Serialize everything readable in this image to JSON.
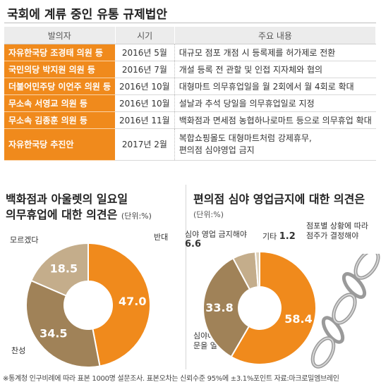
{
  "header": {
    "title": "국회에 계류 중인 유통 규제법안"
  },
  "table": {
    "columns": [
      "발의자",
      "시기",
      "주요 내용"
    ],
    "rows": [
      {
        "proposer": "자유한국당 조경태 의원 등",
        "date": "2016년 5월",
        "content": "대규모 점포 개점 시 등록제를 허가제로 전환"
      },
      {
        "proposer": "국민의당 박지원 의원 등",
        "date": "2016년 7월",
        "content": "개설 등록 전 관할 및 인접 지자체와 협의"
      },
      {
        "proposer": "더불어민주당 이언주 의원 등",
        "date": "2016년 10월",
        "content": "대형마트 의무휴업일을 월 2회에서 월 4회로 확대"
      },
      {
        "proposer": "무소속 서영교 의원 등",
        "date": "2016년 10월",
        "content": "설날과 추석 당일을 의무휴업일로 지정"
      },
      {
        "proposer": "무소속 김종훈 의원 등",
        "date": "2016년 11월",
        "content": "백화점과 면세점 농협하나로마트 등으로 의무휴업 확대"
      },
      {
        "proposer": "자유한국당 추진안",
        "date": "2017년 2월",
        "content": "복합쇼핑몰도 대형마트처럼 강제휴무,",
        "content2": "편의점 심야영업 금지"
      }
    ]
  },
  "left_chart": {
    "title_line1": "백화점과 아울렛의 일요일",
    "title_line2": "의무휴업에 대한 의견은",
    "unit": "(단위:%)",
    "labels": {
      "oppose": "반대",
      "support": "찬성",
      "unknown": "모르겠다"
    }
  },
  "right_chart": {
    "title": "편의점 심야 영업금지에 대한 의견은",
    "unit": "(단위:%)",
    "labels": {
      "ban": "심야 영업 금지해야",
      "ban_value": "6.6",
      "other": "기타",
      "other_value": "1.2",
      "depends_line1": "점포별 상황에 따라",
      "depends_line2": "점주가 결정해야",
      "open_line1": "심야에도",
      "open_line2": "문을 열어야"
    }
  },
  "chart_data": [
    {
      "type": "pie",
      "title": "백화점과 아울렛의 일요일 의무휴업에 대한 의견은",
      "unit": "%",
      "categories": [
        "반대",
        "찬성",
        "모르겠다"
      ],
      "values": [
        47.0,
        34.5,
        18.5
      ],
      "colors": [
        "#f08a1c",
        "#a08258",
        "#c4ad8b"
      ]
    },
    {
      "type": "pie",
      "title": "편의점 심야 영업금지에 대한 의견은",
      "unit": "%",
      "categories": [
        "점포별 상황에 따라 점주가 결정해야",
        "심야에도 문을 열어야",
        "심야 영업 금지해야",
        "기타"
      ],
      "values": [
        58.4,
        33.8,
        6.6,
        1.2
      ],
      "colors": [
        "#f08a1c",
        "#a08258",
        "#c4ad8b",
        "#ddd0b8"
      ]
    }
  ],
  "footnote": "※통계청 인구비례에 따라 표본 1000명 설문조사. 표본오차는 신뢰수준 95%에 ±3.1%포인트  자료:마크로밀엠브레인"
}
